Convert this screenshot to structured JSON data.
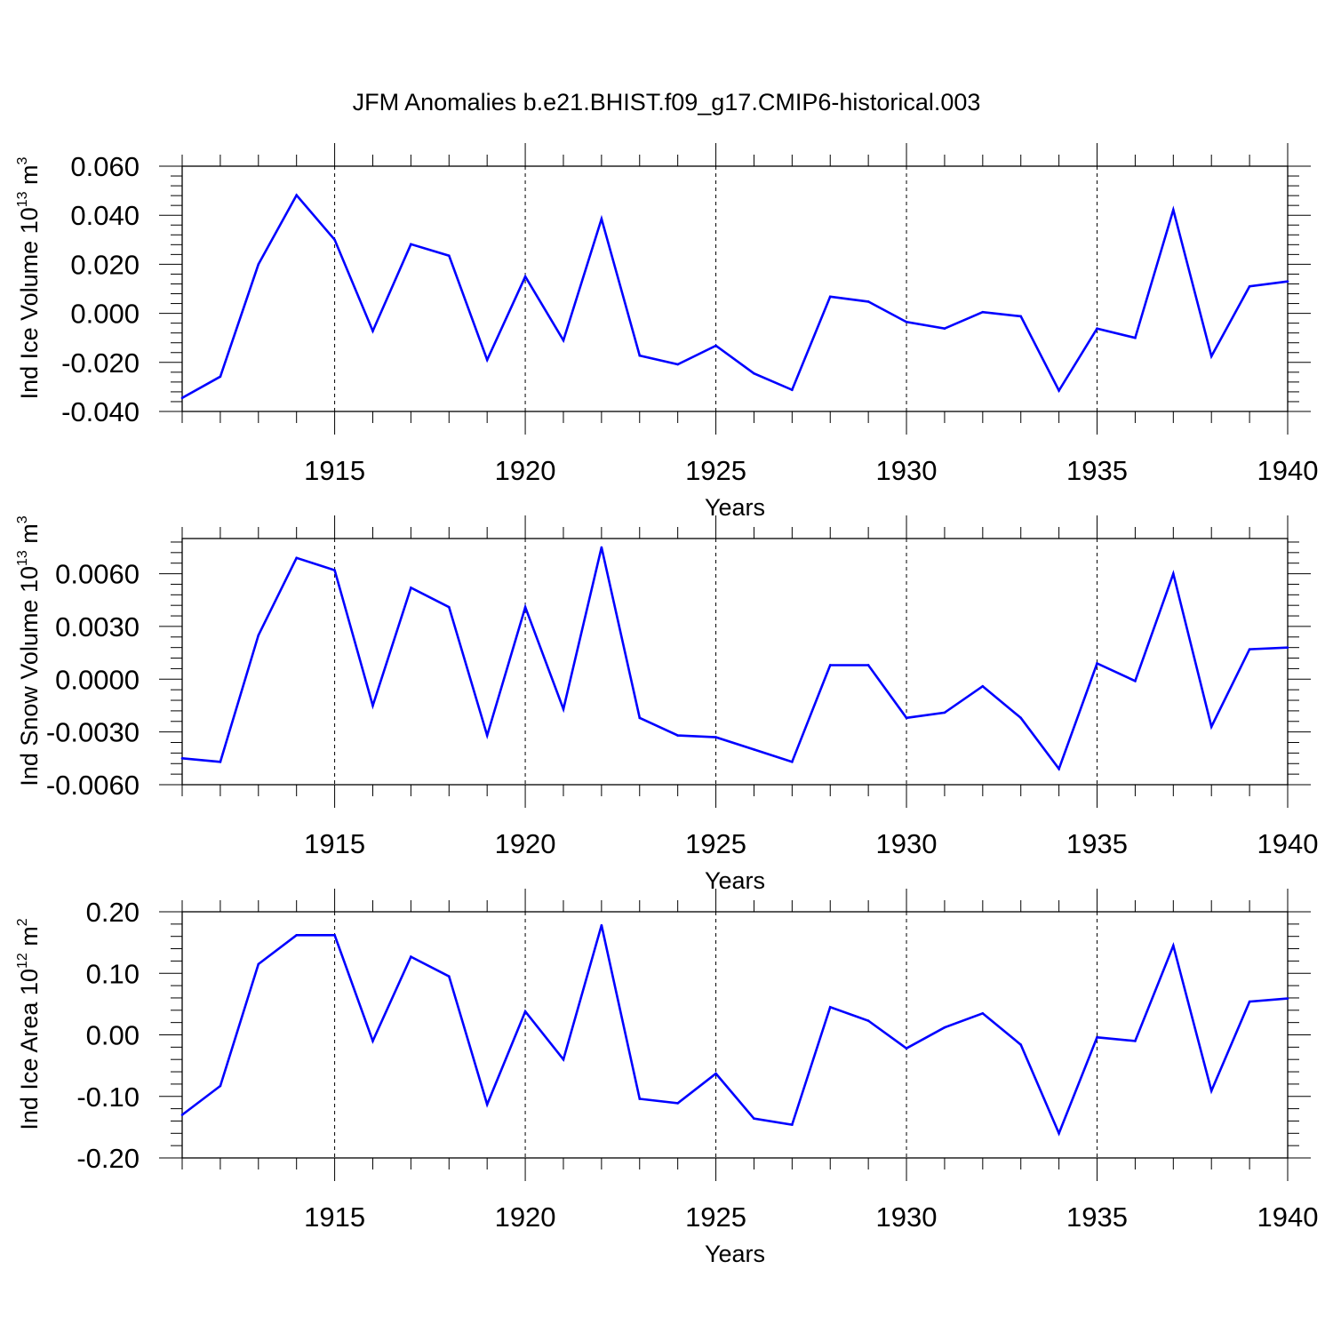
{
  "title": "JFM Anomalies b.e21.BHIST.f09_g17.CMIP6-historical.003",
  "line_color": "#0000ff",
  "chart_data": [
    {
      "type": "line",
      "ylabel": {
        "text": "Ind Ice Volume 10",
        "exp": "13",
        "unit": " m",
        "unit_exp": "3"
      },
      "xlabel": "Years",
      "xlim": [
        1911,
        1940
      ],
      "ylim": [
        -0.04,
        0.06
      ],
      "yticks": [
        -0.04,
        -0.02,
        0.0,
        0.02,
        0.04,
        0.06
      ],
      "ytick_labels": [
        "-0.040",
        "-0.020",
        "0.000",
        "0.020",
        "0.040",
        "0.060"
      ],
      "xticks": [
        1915,
        1920,
        1925,
        1930,
        1935,
        1940
      ],
      "xtick_labels": [
        "1915",
        "1920",
        "1925",
        "1930",
        "1935",
        "1940"
      ],
      "x": [
        1911,
        1912,
        1913,
        1914,
        1915,
        1916,
        1917,
        1918,
        1919,
        1920,
        1921,
        1922,
        1923,
        1924,
        1925,
        1926,
        1927,
        1928,
        1929,
        1930,
        1931,
        1932,
        1933,
        1934,
        1935,
        1936,
        1937,
        1938,
        1939,
        1940
      ],
      "values": [
        -0.0345,
        -0.0258,
        0.02,
        0.0482,
        0.03,
        -0.0072,
        0.0282,
        0.0235,
        -0.019,
        0.015,
        -0.011,
        0.0385,
        -0.0172,
        -0.0208,
        -0.0132,
        -0.0245,
        -0.0312,
        0.0068,
        0.0048,
        -0.0035,
        -0.0062,
        0.0005,
        -0.0012,
        -0.0315,
        -0.0062,
        -0.01,
        0.0422,
        -0.0175,
        0.011,
        0.013
      ]
    },
    {
      "type": "line",
      "ylabel": {
        "text": "Ind Snow Volume 10",
        "exp": "13",
        "unit": " m",
        "unit_exp": "3"
      },
      "xlabel": "Years",
      "xlim": [
        1911,
        1940
      ],
      "ylim": [
        -0.006,
        0.008
      ],
      "yticks": [
        -0.006,
        -0.003,
        0.0,
        0.003,
        0.006
      ],
      "ytick_labels": [
        "-0.0060",
        "-0.0030",
        "0.0000",
        "0.0030",
        "0.0060"
      ],
      "xticks": [
        1915,
        1920,
        1925,
        1930,
        1935,
        1940
      ],
      "xtick_labels": [
        "1915",
        "1920",
        "1925",
        "1930",
        "1935",
        "1940"
      ],
      "x": [
        1911,
        1912,
        1913,
        1914,
        1915,
        1916,
        1917,
        1918,
        1919,
        1920,
        1921,
        1922,
        1923,
        1924,
        1925,
        1926,
        1927,
        1928,
        1929,
        1930,
        1931,
        1932,
        1933,
        1934,
        1935,
        1936,
        1937,
        1938,
        1939,
        1940
      ],
      "values": [
        -0.0045,
        -0.0047,
        0.0025,
        0.0069,
        0.0062,
        -0.0015,
        0.0052,
        0.0041,
        -0.0032,
        0.0041,
        -0.0017,
        0.0075,
        -0.0022,
        -0.0032,
        -0.0033,
        -0.004,
        -0.0047,
        0.0008,
        0.0008,
        -0.0022,
        -0.0019,
        -0.0004,
        -0.0022,
        -0.0051,
        0.0009,
        -0.0001,
        0.006,
        -0.0027,
        0.0017,
        0.0018
      ]
    },
    {
      "type": "line",
      "ylabel": {
        "text": "Ind Ice Area 10",
        "exp": "12",
        "unit": " m",
        "unit_exp": "2"
      },
      "xlabel": "Years",
      "xlim": [
        1911,
        1940
      ],
      "ylim": [
        -0.2,
        0.2
      ],
      "yticks": [
        -0.2,
        -0.1,
        0.0,
        0.1,
        0.2
      ],
      "ytick_labels": [
        "-0.20",
        "-0.10",
        "0.00",
        "0.10",
        "0.20"
      ],
      "xticks": [
        1915,
        1920,
        1925,
        1930,
        1935,
        1940
      ],
      "xtick_labels": [
        "1915",
        "1920",
        "1925",
        "1930",
        "1935",
        "1940"
      ],
      "x": [
        1911,
        1912,
        1913,
        1914,
        1915,
        1916,
        1917,
        1918,
        1919,
        1920,
        1921,
        1922,
        1923,
        1924,
        1925,
        1926,
        1927,
        1928,
        1929,
        1930,
        1931,
        1932,
        1933,
        1934,
        1935,
        1936,
        1937,
        1938,
        1939,
        1940
      ],
      "values": [
        -0.13,
        -0.083,
        0.115,
        0.162,
        0.162,
        -0.01,
        0.127,
        0.095,
        -0.113,
        0.038,
        -0.04,
        0.178,
        -0.104,
        -0.111,
        -0.063,
        -0.136,
        -0.146,
        0.045,
        0.023,
        -0.022,
        0.012,
        0.035,
        -0.016,
        -0.16,
        -0.004,
        -0.01,
        0.145,
        -0.091,
        0.054,
        0.059
      ]
    }
  ]
}
